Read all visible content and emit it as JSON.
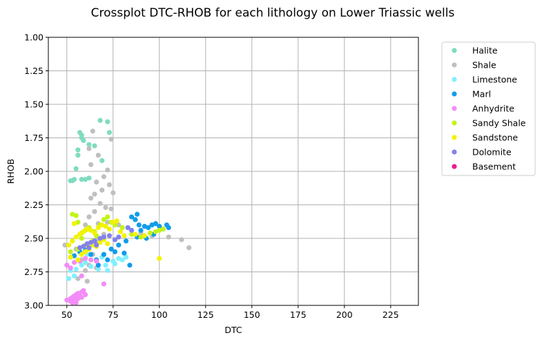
{
  "chart_data": {
    "type": "scatter",
    "title": "Crossplot DTC-RHOB for each lithology on Lower Triassic wells",
    "xlabel": "DTC",
    "ylabel": "RHOB",
    "xlim": [
      40,
      240
    ],
    "ylim": [
      3.0,
      1.0
    ],
    "y_inverted": true,
    "xticks": [
      "50",
      "75",
      "100",
      "125",
      "150",
      "175",
      "200",
      "225"
    ],
    "yticks": [
      "1.00",
      "1.25",
      "1.50",
      "1.75",
      "2.00",
      "2.25",
      "2.50",
      "2.75",
      "3.00"
    ],
    "grid": true,
    "legend_position": "outside-right",
    "series": [
      {
        "name": "Halite",
        "color": "#7fdcc0",
        "points": [
          [
            68,
            1.62
          ],
          [
            72,
            1.63
          ],
          [
            73,
            1.71
          ],
          [
            57,
            1.71
          ],
          [
            58,
            1.73
          ],
          [
            59,
            1.77
          ],
          [
            58,
            1.75
          ],
          [
            62,
            1.8
          ],
          [
            65,
            1.81
          ],
          [
            56,
            1.84
          ],
          [
            56,
            1.88
          ],
          [
            69,
            1.92
          ],
          [
            55,
            1.98
          ],
          [
            58,
            2.06
          ],
          [
            60,
            2.06
          ],
          [
            62,
            2.05
          ],
          [
            52,
            2.07
          ],
          [
            53,
            2.07
          ],
          [
            54,
            2.06
          ]
        ]
      },
      {
        "name": "Shale",
        "color": "#bfbfbf",
        "points": [
          [
            64,
            1.7
          ],
          [
            74,
            1.76
          ],
          [
            62,
            1.83
          ],
          [
            67,
            1.88
          ],
          [
            63,
            1.95
          ],
          [
            72,
            1.99
          ],
          [
            70,
            2.04
          ],
          [
            66,
            2.08
          ],
          [
            73,
            2.1
          ],
          [
            69,
            2.14
          ],
          [
            65,
            2.17
          ],
          [
            75,
            2.16
          ],
          [
            63,
            2.2
          ],
          [
            68,
            2.24
          ],
          [
            71,
            2.27
          ],
          [
            65,
            2.3
          ],
          [
            74,
            2.28
          ],
          [
            62,
            2.34
          ],
          [
            60,
            2.4
          ],
          [
            67,
            2.39
          ],
          [
            72,
            2.38
          ],
          [
            78,
            2.4
          ],
          [
            85,
            2.44
          ],
          [
            90,
            2.46
          ],
          [
            96,
            2.48
          ],
          [
            105,
            2.49
          ],
          [
            112,
            2.51
          ],
          [
            116,
            2.57
          ],
          [
            49,
            2.55
          ],
          [
            55,
            2.58
          ],
          [
            60,
            2.56
          ],
          [
            66,
            2.52
          ],
          [
            70,
            2.47
          ],
          [
            64,
            2.62
          ],
          [
            58,
            2.66
          ],
          [
            62,
            2.7
          ],
          [
            66,
            2.72
          ],
          [
            60,
            2.74
          ],
          [
            61,
            2.82
          ],
          [
            56,
            2.8
          ]
        ]
      },
      {
        "name": "Limestone",
        "color": "#80f0ff",
        "points": [
          [
            50,
            2.7
          ],
          [
            52,
            2.74
          ],
          [
            54,
            2.78
          ],
          [
            51,
            2.8
          ],
          [
            55,
            2.73
          ],
          [
            58,
            2.7
          ],
          [
            60,
            2.68
          ],
          [
            63,
            2.71
          ],
          [
            67,
            2.73
          ],
          [
            71,
            2.7
          ],
          [
            75,
            2.67
          ],
          [
            78,
            2.65
          ],
          [
            80,
            2.66
          ],
          [
            82,
            2.64
          ],
          [
            76,
            2.69
          ],
          [
            72,
            2.74
          ],
          [
            66,
            2.66
          ],
          [
            61,
            2.62
          ],
          [
            57,
            2.6
          ],
          [
            69,
            2.64
          ]
        ]
      },
      {
        "name": "Marl",
        "color": "#129cea",
        "points": [
          [
            54,
            2.63
          ],
          [
            57,
            2.6
          ],
          [
            60,
            2.59
          ],
          [
            63,
            2.62
          ],
          [
            66,
            2.66
          ],
          [
            70,
            2.62
          ],
          [
            74,
            2.58
          ],
          [
            78,
            2.55
          ],
          [
            82,
            2.52
          ],
          [
            85,
            2.34
          ],
          [
            87,
            2.36
          ],
          [
            88,
            2.32
          ],
          [
            89,
            2.4
          ],
          [
            90,
            2.44
          ],
          [
            92,
            2.41
          ],
          [
            94,
            2.42
          ],
          [
            96,
            2.4
          ],
          [
            98,
            2.39
          ],
          [
            100,
            2.41
          ],
          [
            102,
            2.43
          ],
          [
            104,
            2.4
          ],
          [
            105,
            2.42
          ],
          [
            97,
            2.47
          ],
          [
            93,
            2.5
          ],
          [
            88,
            2.49
          ],
          [
            84,
            2.7
          ],
          [
            81,
            2.61
          ],
          [
            76,
            2.6
          ],
          [
            67,
            2.7
          ],
          [
            72,
            2.66
          ]
        ]
      },
      {
        "name": "Anhydrite",
        "color": "#f38cf7",
        "points": [
          [
            50,
            2.96
          ],
          [
            52,
            2.95
          ],
          [
            53,
            2.94
          ],
          [
            54,
            2.93
          ],
          [
            55,
            2.92
          ],
          [
            56,
            2.91
          ],
          [
            57,
            2.93
          ],
          [
            58,
            2.9
          ],
          [
            59,
            2.89
          ],
          [
            60,
            2.92
          ],
          [
            54,
            2.96
          ],
          [
            52,
            2.97
          ],
          [
            56,
            2.95
          ],
          [
            58,
            2.94
          ],
          [
            50,
            2.7
          ],
          [
            52,
            2.72
          ],
          [
            54,
            2.68
          ],
          [
            57,
            2.67
          ],
          [
            60,
            2.65
          ],
          [
            63,
            2.66
          ],
          [
            66,
            2.67
          ],
          [
            58,
            2.78
          ],
          [
            70,
            2.84
          ],
          [
            53,
            2.98
          ],
          [
            55,
            2.98
          ]
        ]
      },
      {
        "name": "Sandy Shale",
        "color": "#c2f418",
        "points": [
          [
            53,
            2.32
          ],
          [
            55,
            2.33
          ],
          [
            56,
            2.38
          ],
          [
            58,
            2.46
          ],
          [
            60,
            2.44
          ],
          [
            62,
            2.42
          ],
          [
            65,
            2.45
          ],
          [
            68,
            2.4
          ],
          [
            70,
            2.36
          ],
          [
            72,
            2.34
          ],
          [
            74,
            2.38
          ],
          [
            76,
            2.4
          ],
          [
            80,
            2.42
          ],
          [
            85,
            2.47
          ],
          [
            90,
            2.49
          ],
          [
            95,
            2.46
          ],
          [
            98,
            2.45
          ],
          [
            100,
            2.44
          ],
          [
            102,
            2.43
          ],
          [
            56,
            2.58
          ],
          [
            60,
            2.55
          ],
          [
            64,
            2.52
          ],
          [
            52,
            2.6
          ],
          [
            66,
            2.48
          ],
          [
            58,
            2.5
          ]
        ]
      },
      {
        "name": "Sandstone",
        "color": "#f3f300",
        "points": [
          [
            51,
            2.55
          ],
          [
            53,
            2.52
          ],
          [
            55,
            2.49
          ],
          [
            57,
            2.47
          ],
          [
            59,
            2.45
          ],
          [
            61,
            2.43
          ],
          [
            63,
            2.44
          ],
          [
            65,
            2.46
          ],
          [
            67,
            2.42
          ],
          [
            69,
            2.4
          ],
          [
            71,
            2.41
          ],
          [
            73,
            2.43
          ],
          [
            75,
            2.38
          ],
          [
            77,
            2.37
          ],
          [
            79,
            2.45
          ],
          [
            81,
            2.48
          ],
          [
            54,
            2.39
          ],
          [
            58,
            2.62
          ],
          [
            60,
            2.6
          ],
          [
            62,
            2.58
          ],
          [
            64,
            2.55
          ],
          [
            66,
            2.56
          ],
          [
            68,
            2.53
          ],
          [
            70,
            2.51
          ],
          [
            72,
            2.54
          ],
          [
            56,
            2.66
          ],
          [
            52,
            2.64
          ],
          [
            100,
            2.65
          ],
          [
            87,
            2.47
          ],
          [
            92,
            2.48
          ]
        ]
      },
      {
        "name": "Dolomite",
        "color": "#8381eb",
        "points": [
          [
            57,
            2.57
          ],
          [
            59,
            2.56
          ],
          [
            61,
            2.54
          ],
          [
            63,
            2.53
          ],
          [
            65,
            2.52
          ],
          [
            68,
            2.5
          ],
          [
            70,
            2.49
          ],
          [
            73,
            2.48
          ],
          [
            76,
            2.51
          ],
          [
            78,
            2.49
          ],
          [
            83,
            2.42
          ],
          [
            85,
            2.44
          ],
          [
            62,
            2.57
          ],
          [
            66,
            2.55
          ]
        ]
      },
      {
        "name": "Basement",
        "color": "#ee1c8c",
        "points": []
      }
    ]
  }
}
